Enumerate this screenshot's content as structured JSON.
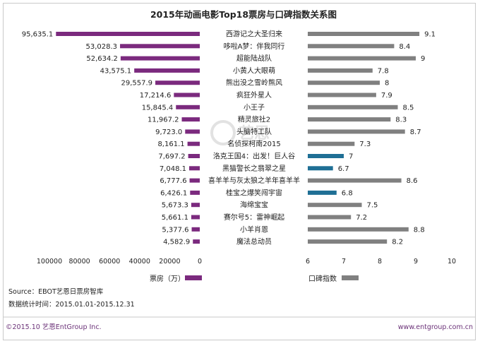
{
  "chart_data": {
    "type": "bar",
    "title": "2015年动画电影Top18票房与口碑指数关系图",
    "categories": [
      "西游记之大圣归来",
      "哆啦A梦：伴我同行",
      "超能陆战队",
      "小黄人大眼萌",
      "熊出没之雪岭熊风",
      "疯狂外星人",
      "小王子",
      "精灵旅社2",
      "头脑特工队",
      "名侦探柯南2015",
      "洛克王国4：出发！巨人谷",
      "黑猫警长之翡翠之星",
      "喜羊羊与灰太狼之羊年喜羊羊",
      "桂宝之爆笑闯宇宙",
      "海绵宝宝",
      "赛尔号5：雷神崛起",
      "小羊肖恩",
      "魔法总动员"
    ],
    "series": [
      {
        "name": "票房（万）",
        "values": [
          95635.1,
          53028.3,
          52634.2,
          43575.1,
          29557.9,
          17214.6,
          15845.4,
          11967.2,
          9723.0,
          8161.1,
          7697.2,
          7048.1,
          6777.6,
          6426.1,
          5673.3,
          5661.1,
          5377.6,
          4582.9
        ],
        "labels": [
          "95,635.1",
          "53,028.3",
          "52,634.2",
          "43,575.1",
          "29,557.9",
          "17,214.6",
          "15,845.4",
          "11,967.2",
          "9,723.0",
          "8,161.1",
          "7,697.2",
          "7,048.1",
          "6,777.6",
          "6,426.1",
          "5,673.3",
          "5,661.1",
          "5,377.6",
          "4,582.9"
        ],
        "color": "#7b2a7e",
        "xlim": [
          0,
          100000
        ],
        "ticks": [
          "100000",
          "80000",
          "60000",
          "40000",
          "20000",
          "0"
        ],
        "reversed": true
      },
      {
        "name": "口碑指数",
        "values": [
          9.1,
          8.4,
          9,
          7.8,
          8,
          7.9,
          8.5,
          8.3,
          8.7,
          7.3,
          7,
          6.7,
          8.6,
          6.8,
          7.5,
          7.2,
          8.8,
          8.2
        ],
        "labels": [
          "9.1",
          "8.4",
          "9",
          "7.8",
          "8",
          "7.9",
          "8.5",
          "8.3",
          "8.7",
          "7.3",
          "7",
          "6.7",
          "8.6",
          "6.8",
          "7.5",
          "7.2",
          "8.8",
          "8.2"
        ],
        "color": "#808080",
        "highlight_color": "#1f6f95",
        "highlight_categories": [
          "洛克王国4：出发！巨人谷",
          "黑猫警长之翡翠之星",
          "桂宝之爆笑闯宇宙"
        ],
        "xlim": [
          6,
          10
        ],
        "ticks": [
          "6",
          "7",
          "8",
          "9",
          "10"
        ]
      }
    ],
    "legend": [
      "票房（万）",
      "口碑指数"
    ],
    "source": "Source：EBOT艺恩日票房智库",
    "period": "数据统计时间：2015.01.01-2015.12.31"
  },
  "watermark": "艺恩",
  "footer": {
    "left": "©2015.10 艺恩EntGroup Inc.",
    "right": "www.entgroup.com.cn",
    "color": "#6b3278"
  }
}
